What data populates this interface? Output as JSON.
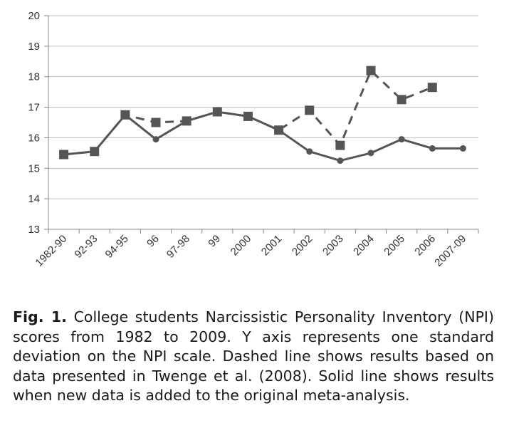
{
  "chart_data": {
    "type": "line",
    "categories": [
      "1982-90",
      "92-93",
      "94-95",
      "96",
      "97-98",
      "99",
      "2000",
      "2001",
      "2002",
      "2003",
      "2004",
      "2005",
      "2006",
      "2007-09"
    ],
    "ylim": [
      13,
      20
    ],
    "yticks": [
      13,
      14,
      15,
      16,
      17,
      18,
      19,
      20
    ],
    "grid": "horizontal",
    "legend": "none",
    "series": [
      {
        "style": "dashed",
        "marker": "square",
        "color": "#555555",
        "values": [
          15.45,
          15.55,
          16.75,
          16.5,
          16.55,
          16.85,
          16.7,
          16.25,
          16.9,
          15.75,
          18.2,
          17.25,
          17.65,
          null
        ]
      },
      {
        "style": "solid",
        "marker": "circle",
        "color": "#555555",
        "values": [
          15.45,
          15.55,
          16.75,
          15.95,
          16.55,
          16.85,
          16.7,
          16.25,
          15.55,
          15.25,
          15.5,
          15.95,
          15.65,
          15.65
        ]
      }
    ]
  },
  "caption": {
    "label": "Fig. 1.",
    "text": "College students Narcissistic Personality Inventory (NPI) scores from 1982 to 2009. Y axis represents one standard deviation on the NPI scale. Dashed line shows results based on data presented in Twenge et al. (2008). Solid line shows results when new data is added to the original meta-analysis."
  }
}
